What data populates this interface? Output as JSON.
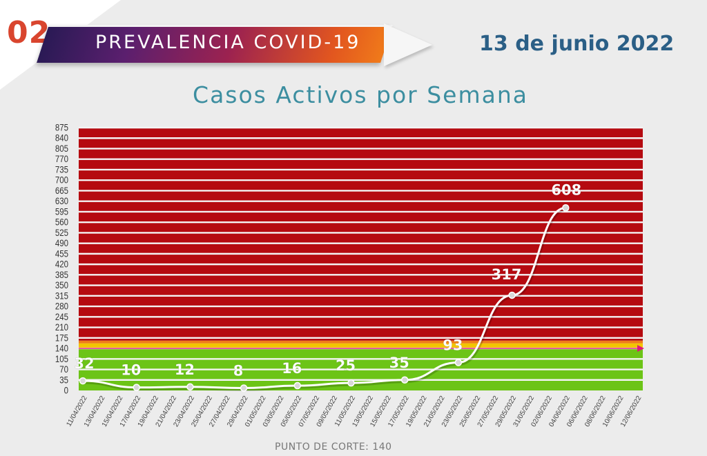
{
  "header": {
    "number": "02",
    "banner_title": "PREVALENCIA COVID-19",
    "date": "13 de junio 2022"
  },
  "chart_data": {
    "type": "line",
    "title": "Casos Activos por Semana",
    "footnote": "PUNTO DE CORTE: 140",
    "cutoff": 140,
    "ylim": [
      0,
      875
    ],
    "yticks": [
      0,
      35,
      70,
      105,
      140,
      175,
      210,
      245,
      280,
      315,
      350,
      385,
      420,
      455,
      490,
      525,
      560,
      595,
      630,
      665,
      700,
      735,
      770,
      805,
      840,
      875
    ],
    "x_labels": [
      "11/04/2022",
      "13/04/2022",
      "15/04/2022",
      "17/04/2022",
      "19/04/2022",
      "21/04/2022",
      "23/04/2022",
      "25/04/2022",
      "27/04/2022",
      "29/04/2022",
      "01/05/2022",
      "03/05/2022",
      "05/05/2022",
      "07/05/2022",
      "09/05/2022",
      "11/05/2022",
      "13/05/2022",
      "15/05/2022",
      "17/05/2022",
      "19/05/2022",
      "21/05/2022",
      "23/05/2022",
      "25/05/2022",
      "27/05/2022",
      "29/05/2022",
      "31/05/2022",
      "02/06/2022",
      "04/06/2022",
      "06/06/2022",
      "08/06/2022",
      "10/06/2022",
      "12/06/2022"
    ],
    "points": [
      {
        "x": "11/04/2022",
        "y": 32,
        "label": "32"
      },
      {
        "x": "17/04/2022",
        "y": 10,
        "label": "10"
      },
      {
        "x": "23/04/2022",
        "y": 12,
        "label": "12"
      },
      {
        "x": "29/04/2022",
        "y": 8,
        "label": "8"
      },
      {
        "x": "05/05/2022",
        "y": 16,
        "label": "16"
      },
      {
        "x": "11/05/2022",
        "y": 25,
        "label": "25"
      },
      {
        "x": "17/05/2022",
        "y": 35,
        "label": "35"
      },
      {
        "x": "23/05/2022",
        "y": 93,
        "label": "93"
      },
      {
        "x": "29/05/2022",
        "y": 317,
        "label": "317"
      },
      {
        "x": "04/06/2022",
        "y": 608,
        "label": "608"
      }
    ],
    "zones": [
      {
        "name": "green",
        "from": 0,
        "to": 140,
        "color": "#6cc417"
      },
      {
        "name": "yellow",
        "from": 140,
        "to": 157,
        "color": "#f2c500"
      },
      {
        "name": "orange",
        "from": 157,
        "to": 166,
        "color": "#ef7d1a"
      },
      {
        "name": "red",
        "from": 166,
        "to": 875,
        "color": "#b50a10"
      }
    ],
    "colors": {
      "line": "#ffffff",
      "cutoff_marker": "#e0177a",
      "axis_text": "#333333"
    }
  }
}
